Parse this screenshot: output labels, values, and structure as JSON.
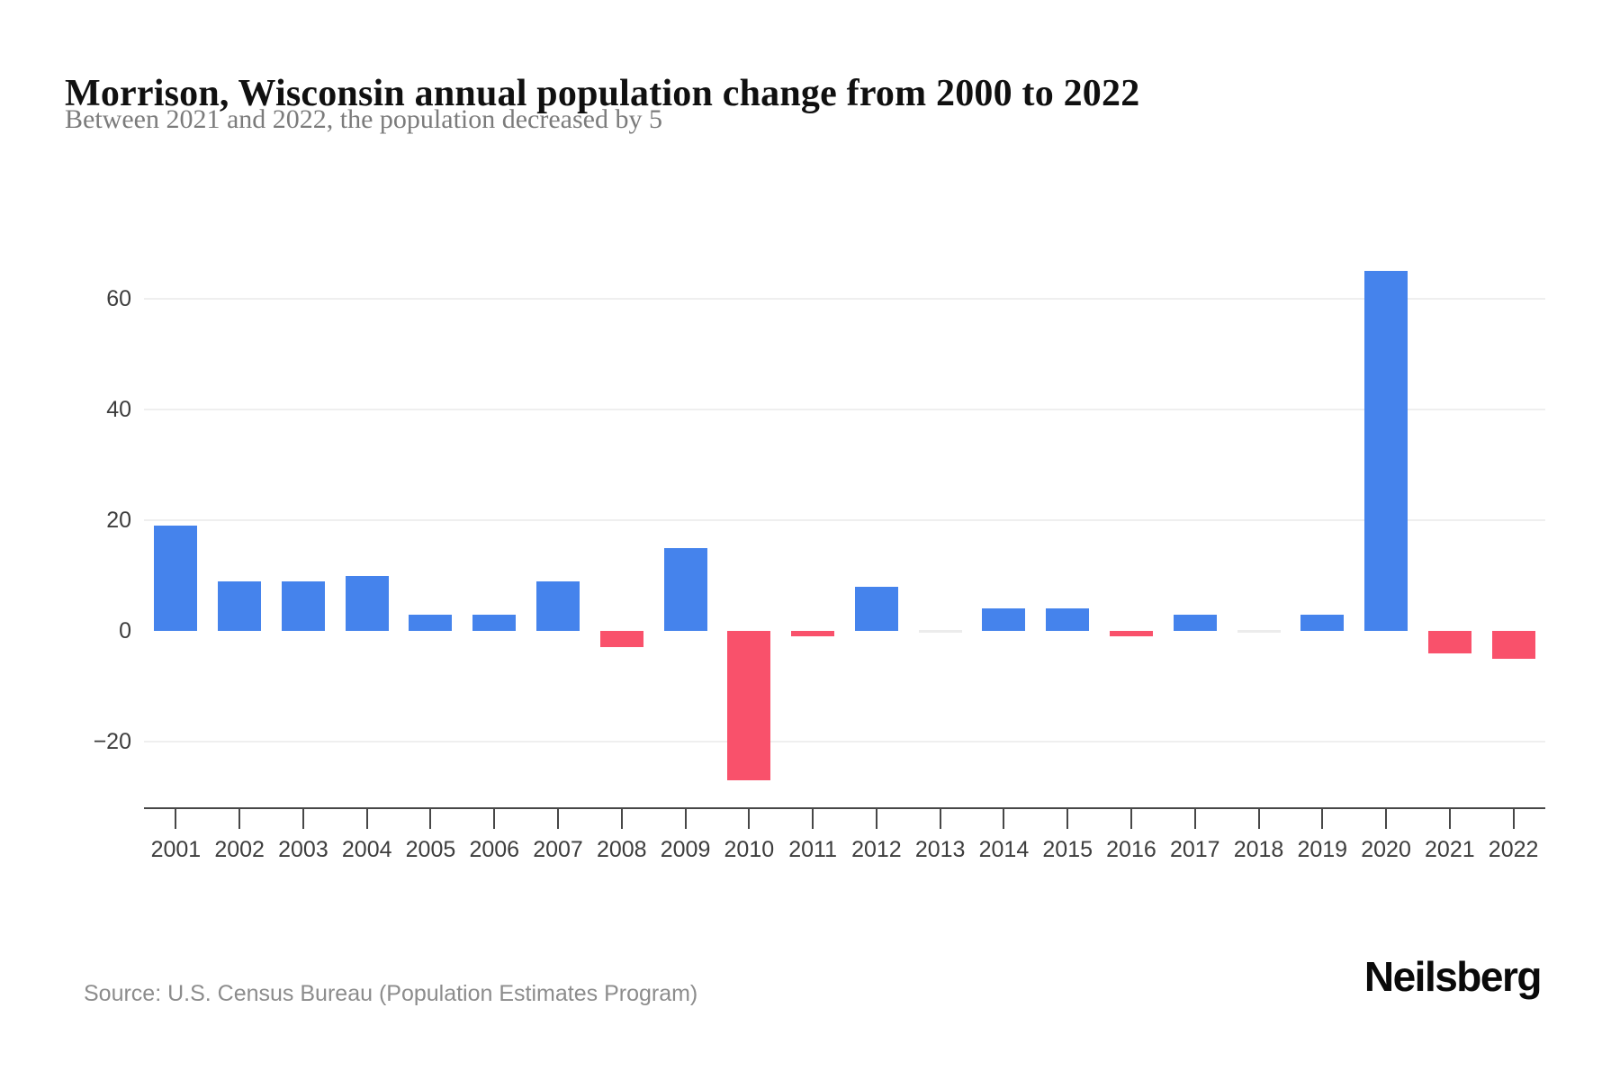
{
  "header": {
    "title": "Morrison, Wisconsin annual population change from 2000 to 2022",
    "subtitle": "Between 2021 and 2022, the population decreased by 5"
  },
  "footer": {
    "source": "Source: U.S. Census Bureau (Population Estimates Program)",
    "brand": "Neilsberg"
  },
  "chart_data": {
    "type": "bar",
    "title": "Morrison, Wisconsin annual population change from 2000 to 2022",
    "categories": [
      "2001",
      "2002",
      "2003",
      "2004",
      "2005",
      "2006",
      "2007",
      "2008",
      "2009",
      "2010",
      "2011",
      "2012",
      "2013",
      "2014",
      "2015",
      "2016",
      "2017",
      "2018",
      "2019",
      "2020",
      "2021",
      "2022"
    ],
    "values": [
      19,
      9,
      9,
      10,
      3,
      3,
      9,
      -3,
      15,
      -27,
      -1,
      8,
      0,
      4,
      4,
      -1,
      3,
      0,
      3,
      65,
      -4,
      -5
    ],
    "xlabel": "",
    "ylabel": "",
    "ylim": [
      -30,
      68
    ],
    "ytick_values": [
      60,
      40,
      20,
      0,
      -20
    ],
    "ytick_labels": [
      "60",
      "40",
      "20",
      "0",
      "−20"
    ],
    "grid": "horizontal",
    "legend": "none",
    "colors": {
      "positive": "#4583EC",
      "negative": "#F9516B",
      "zero_bar": "#ECECEC",
      "gridline": "#EFEFEF",
      "axis": "#474747"
    }
  }
}
